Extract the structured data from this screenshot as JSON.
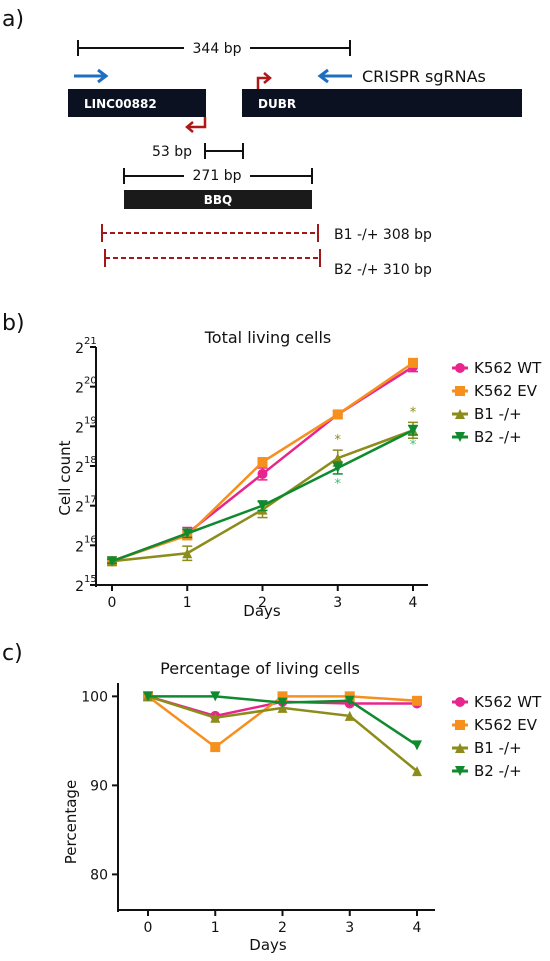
{
  "panel_labels": {
    "a": "a)",
    "b": "b)",
    "c": "c)"
  },
  "diagram": {
    "span_top": "344 bp",
    "gene_left": "LINC00882",
    "gene_right": "DUBR",
    "crispr_label": "CRISPR sgRNAs",
    "span_gap": "53 bp",
    "span_bbq": "271 bp",
    "gene_bbq": "BBQ",
    "deletion_b1": "B1 -/+ 308 bp",
    "deletion_b2": "B2 -/+ 310 bp",
    "colors": {
      "gene_box": "#0b1120",
      "bbq_box": "#1a1a1a",
      "sgrna_arrow": "#1f6fc0",
      "promoter_arrow": "#b01818",
      "deletion_line": "#a01818"
    }
  },
  "chart_data": [
    {
      "type": "line",
      "title": "Total living cells",
      "xlabel": "Days",
      "ylabel": "Cell count",
      "x": [
        0,
        1,
        2,
        3,
        4
      ],
      "y_scale": "log2",
      "ylim_exponent": [
        15,
        21
      ],
      "y_tick_base": "2",
      "y_tick_exponents": [
        "15",
        "16",
        "17",
        "18",
        "19",
        "20",
        "21"
      ],
      "legend_position": "right",
      "series": [
        {
          "name": "K562 WT",
          "marker": "circle",
          "color": "#e8258c",
          "log2_values": [
            15.6,
            16.3,
            17.8,
            19.3,
            20.5
          ],
          "err": [
            0.05,
            0.15,
            0.15,
            0.08,
            0.12
          ]
        },
        {
          "name": "K562 EV",
          "marker": "square",
          "color": "#f5901e",
          "log2_values": [
            15.6,
            16.25,
            18.1,
            19.3,
            20.6
          ],
          "err": [
            0.05,
            0.1,
            0.1,
            0.08,
            0.1
          ]
        },
        {
          "name": "B1 -/+",
          "marker": "triangle-up",
          "color": "#8c8c1a",
          "log2_values": [
            15.6,
            15.8,
            16.9,
            18.2,
            18.9
          ],
          "err": [
            0.05,
            0.18,
            0.2,
            0.2,
            0.2
          ]
        },
        {
          "name": "B2 -/+",
          "marker": "triangle-down",
          "color": "#0f8a2e",
          "log2_values": [
            15.6,
            16.3,
            17.0,
            17.95,
            18.9
          ],
          "err": [
            0.05,
            0.1,
            0.12,
            0.15,
            0.12
          ]
        }
      ],
      "annotations": {
        "significance": "*"
      }
    },
    {
      "type": "line",
      "title": "Percentage of living cells",
      "xlabel": "Days",
      "ylabel": "Percentage",
      "x": [
        0,
        1,
        2,
        3,
        4
      ],
      "ylim": [
        76,
        101.5
      ],
      "y_ticks": [
        80,
        90,
        100
      ],
      "legend_position": "right",
      "series": [
        {
          "name": "K562 WT",
          "marker": "circle",
          "color": "#e8258c",
          "values": [
            100,
            97.8,
            99.4,
            99.2,
            99.2
          ]
        },
        {
          "name": "K562 EV",
          "marker": "square",
          "color": "#f5901e",
          "values": [
            100,
            94.3,
            100,
            100,
            99.5
          ]
        },
        {
          "name": "B1 -/+",
          "marker": "triangle-up",
          "color": "#8c8c1a",
          "values": [
            100,
            97.6,
            98.7,
            97.8,
            91.6
          ]
        },
        {
          "name": "B2 -/+",
          "marker": "triangle-down",
          "color": "#0f8a2e",
          "values": [
            100,
            100,
            99.3,
            99.5,
            94.5
          ]
        }
      ]
    }
  ]
}
